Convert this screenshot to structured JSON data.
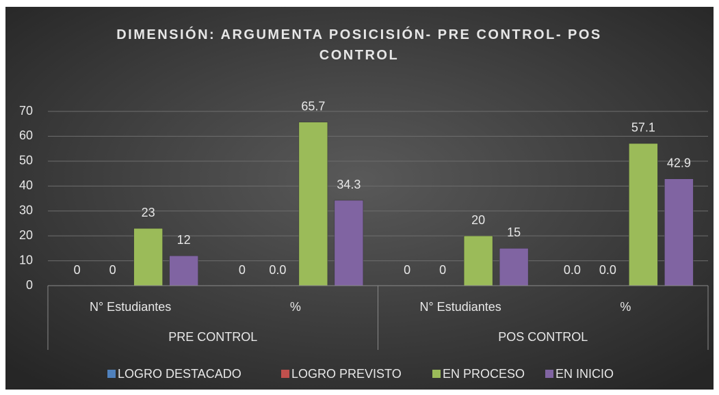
{
  "chart_data": {
    "type": "bar",
    "title": "DIMENSIÓN: ARGUMENTA POSICISIÓN- PRE CONTROL- POS CONTROL",
    "groups": [
      "PRE CONTROL",
      "POS CONTROL"
    ],
    "categories": [
      "N° Estudiantes",
      "%",
      "N° Estudiantes",
      "%"
    ],
    "series": [
      {
        "name": "LOGRO DESTACADO",
        "color": "#4f81bd",
        "values": [
          0,
          0,
          0,
          0
        ],
        "value_labels": [
          "0",
          "0",
          "0",
          "0.0"
        ]
      },
      {
        "name": "LOGRO PREVISTO",
        "color": "#c0504d",
        "values": [
          0,
          0,
          0,
          0
        ],
        "value_labels": [
          "0",
          "0.0",
          "0",
          "0.0"
        ]
      },
      {
        "name": "EN PROCESO",
        "color": "#9bbb59",
        "values": [
          23,
          65.7,
          20,
          57.1
        ]
      },
      {
        "name": "EN INICIO",
        "color": "#8064a2",
        "values": [
          12,
          34.3,
          15,
          42.9
        ]
      }
    ],
    "ylim": [
      0,
      70
    ],
    "yticks": [
      0,
      10,
      20,
      30,
      40,
      50,
      60,
      70
    ],
    "grid": true,
    "legend": "bottom"
  }
}
